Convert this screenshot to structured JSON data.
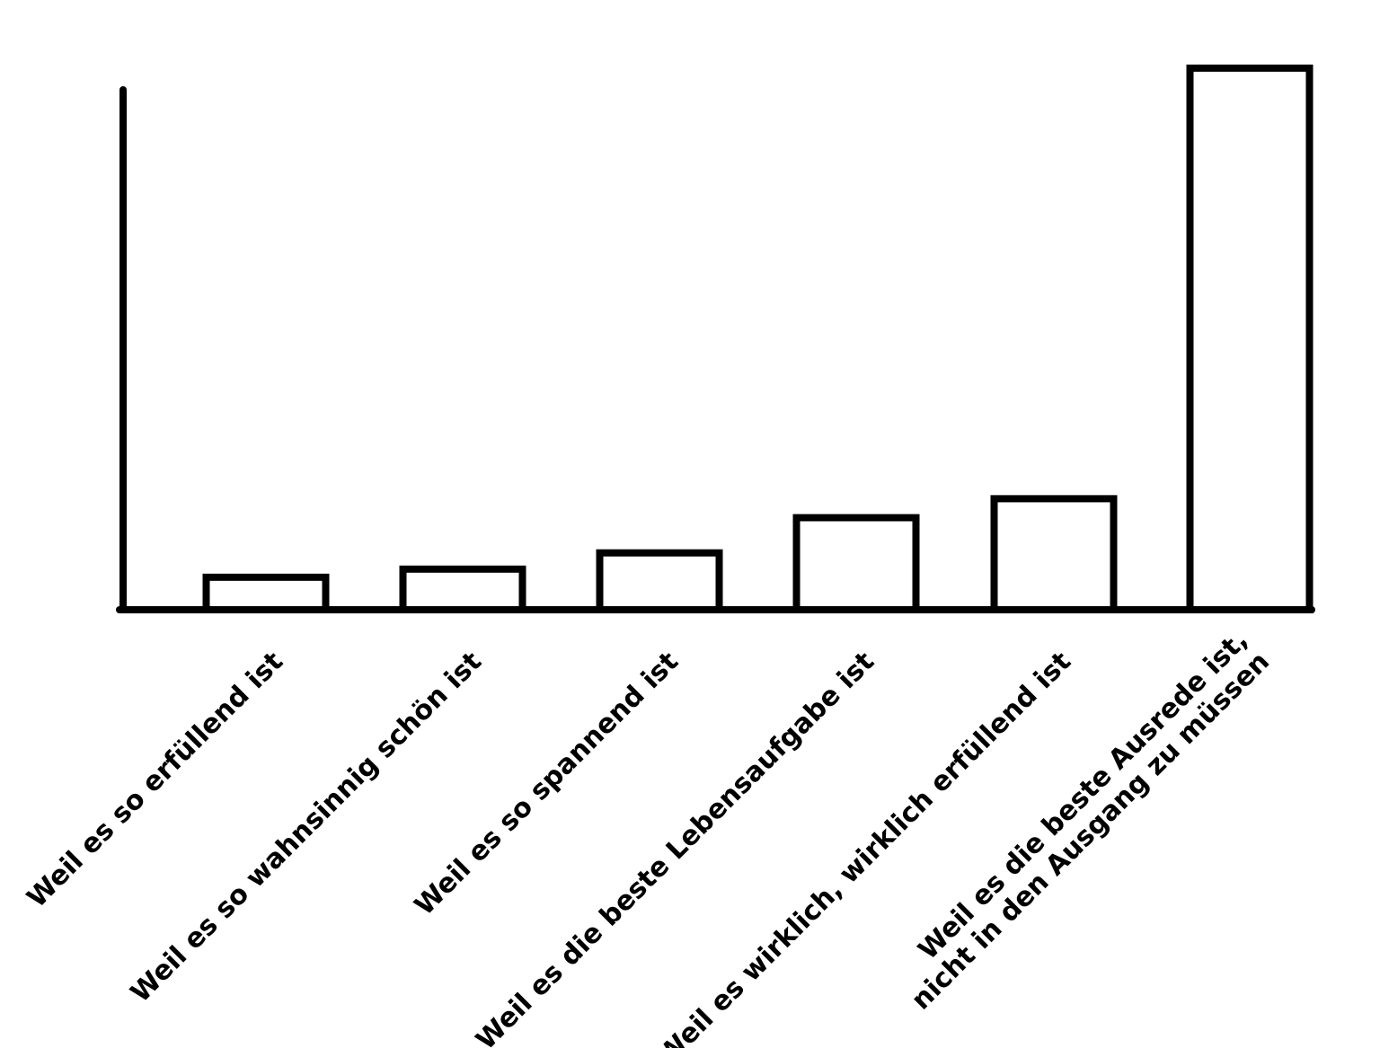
{
  "chart_data": {
    "type": "bar",
    "title": "",
    "xlabel": "",
    "ylabel": "",
    "categories": [
      [
        "Weil es so erfüllend ist"
      ],
      [
        "Weil es so wahnsinnig schön ist"
      ],
      [
        "Weil es so spannend ist"
      ],
      [
        "Weil es die beste Lebensaufgabe ist"
      ],
      [
        "Weil es wirklich, wirklich erfüllend ist"
      ],
      [
        "Weil es die beste Ausrede ist,",
        "nicht in den Ausgang zu müssen"
      ]
    ],
    "values": [
      6,
      7.5,
      10.5,
      17,
      20.5,
      100
    ],
    "ylim": [
      0,
      96
    ],
    "grid": false,
    "y_ticks": false,
    "bar_fill": "#ffffff",
    "bar_stroke": "#000000",
    "axis_color": "#000000"
  }
}
